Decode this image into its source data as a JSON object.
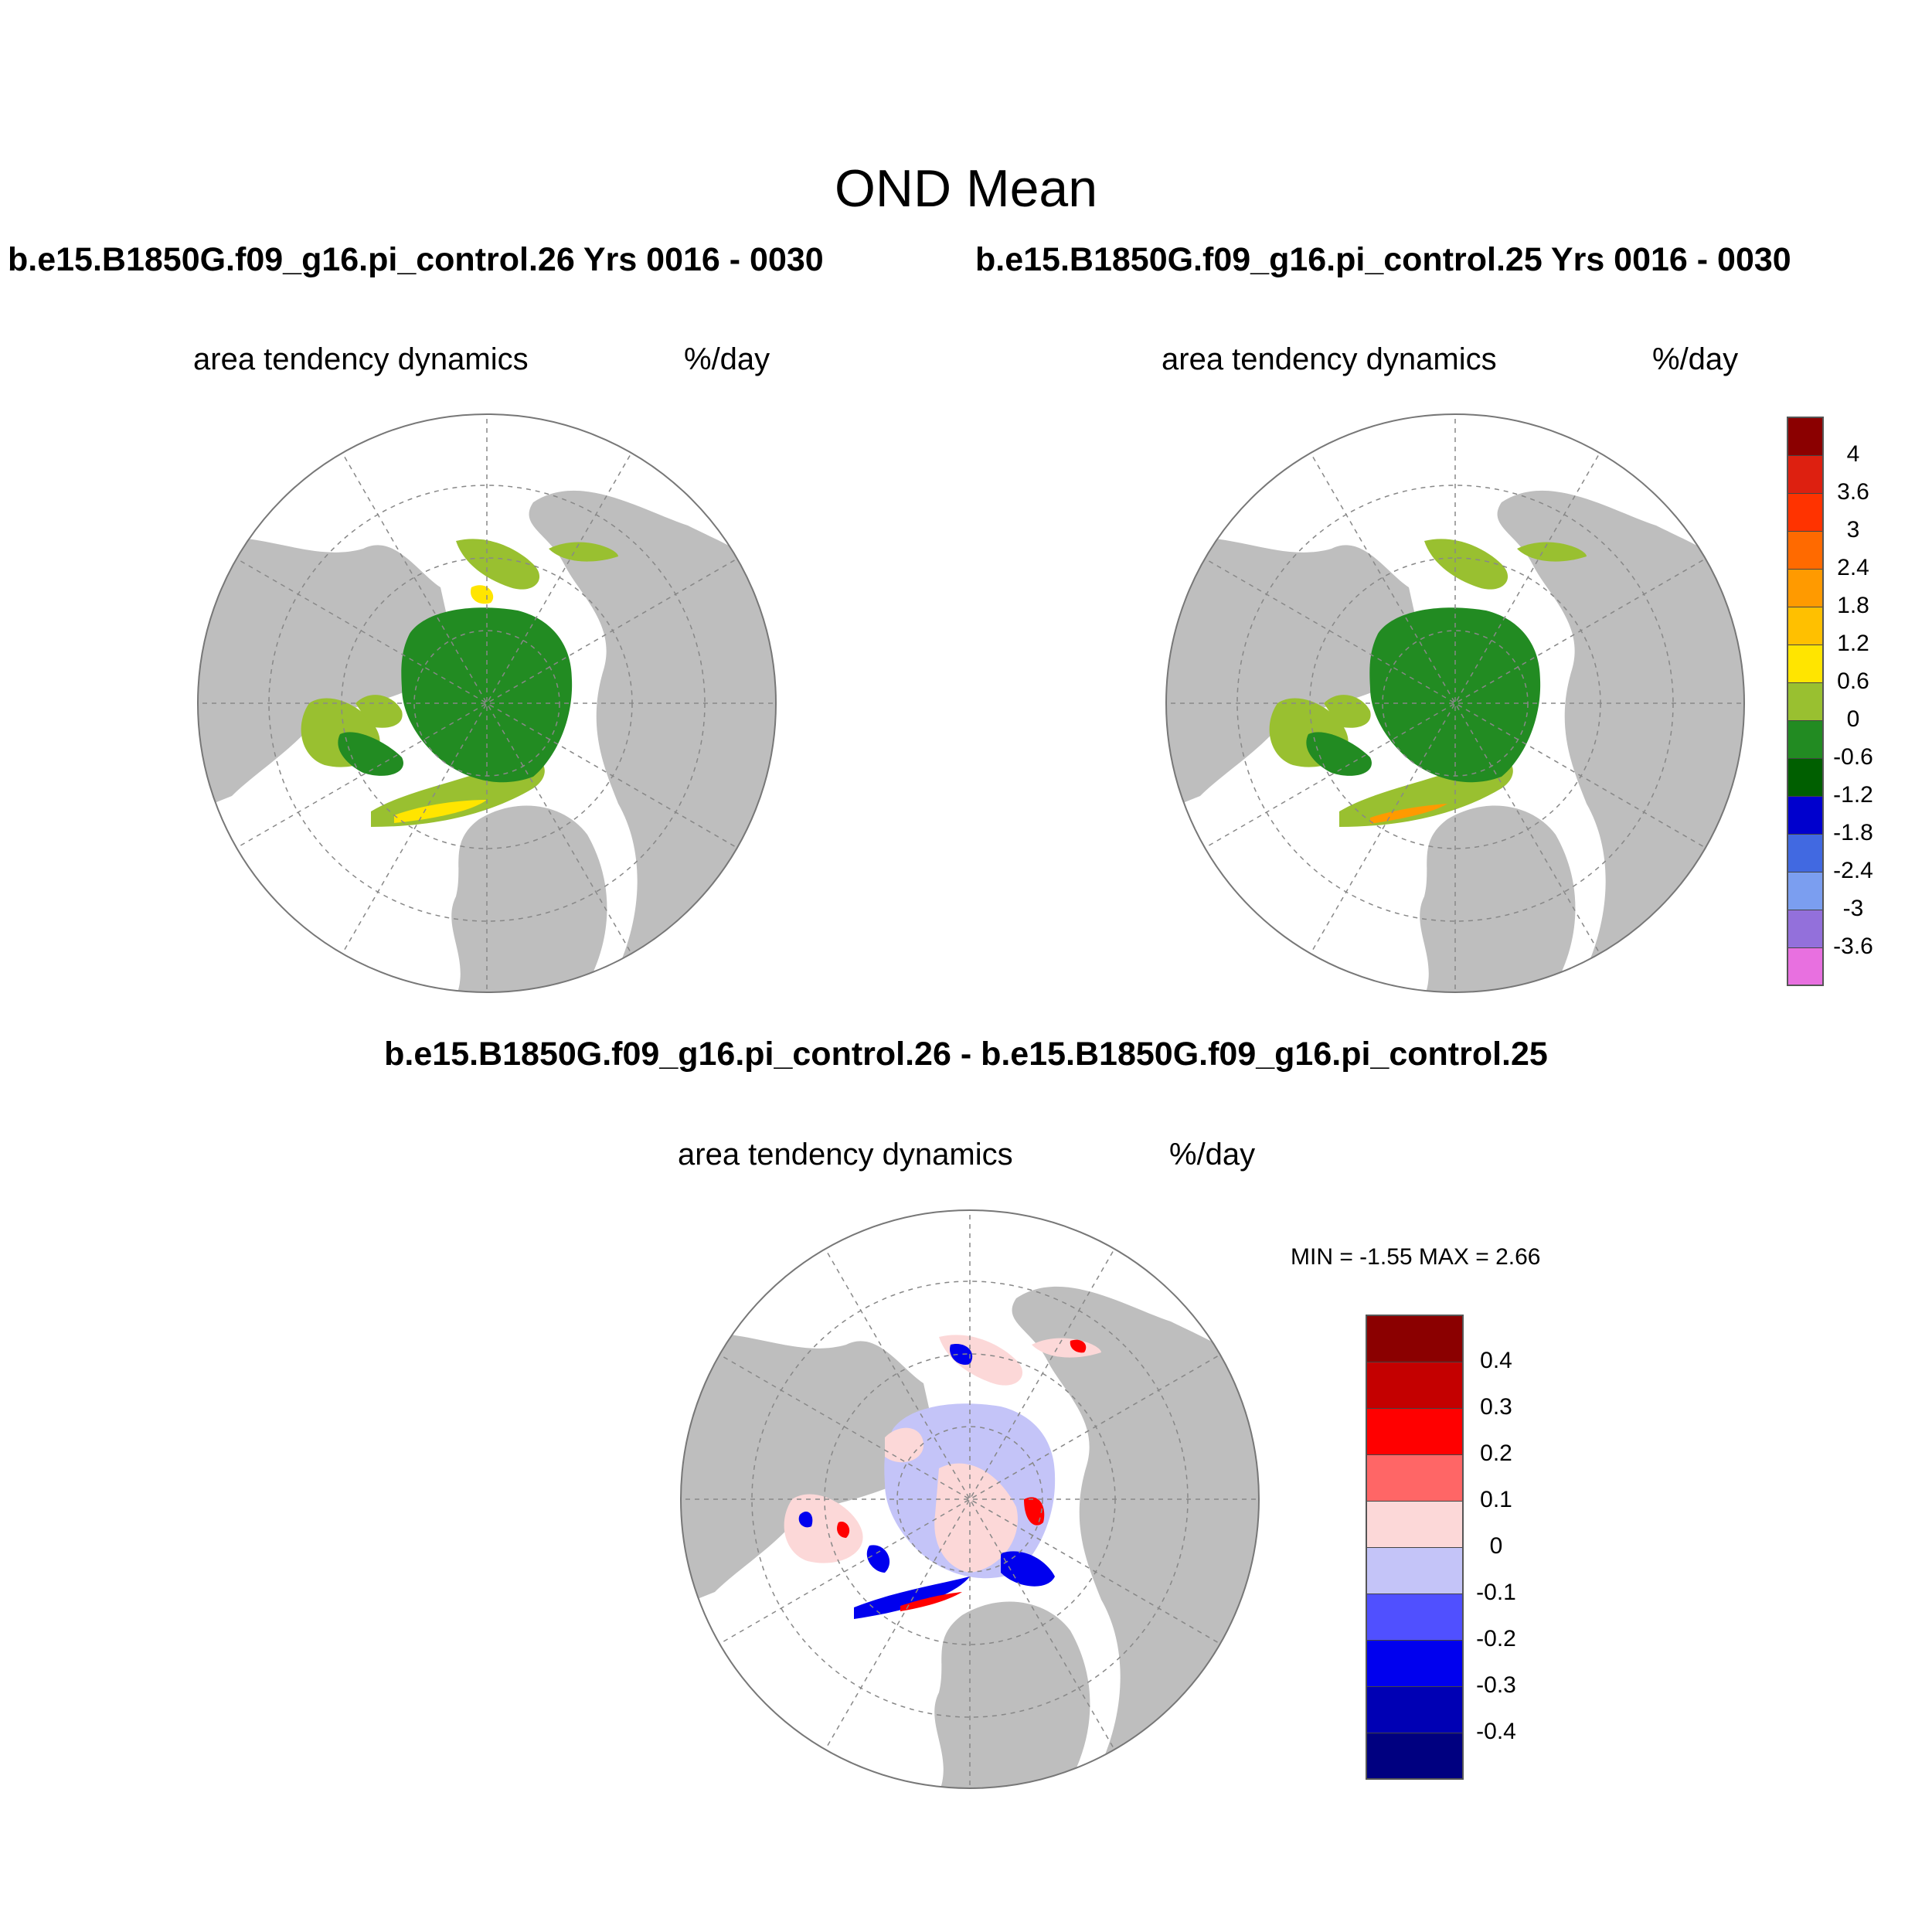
{
  "title": "OND Mean",
  "panels": [
    {
      "case": "b.e15.B1850G.f09_g16.pi_control.26  Yrs 0016 - 0030",
      "variable": "area tendency dynamics",
      "units": "%/day"
    },
    {
      "case": "b.e15.B1850G.f09_g16.pi_control.25  Yrs 0016 - 0030",
      "variable": "area tendency dynamics",
      "units": "%/day"
    }
  ],
  "difference": {
    "title": "b.e15.B1850G.f09_g16.pi_control.26 - b.e15.B1850G.f09_g16.pi_control.25",
    "variable": "area tendency dynamics",
    "units": "%/day",
    "minmax": "MIN =  -1.55 MAX =   2.66"
  },
  "colorbar_main": {
    "labels": [
      "4",
      "3.6",
      "3",
      "2.4",
      "1.8",
      "1.2",
      "0.6",
      "0",
      "-0.6",
      "-1.2",
      "-1.8",
      "-2.4",
      "-3",
      "-3.6"
    ],
    "colors": [
      "#8b0000",
      "#dd2010",
      "#ff3300",
      "#ff6a00",
      "#ff9a00",
      "#ffc000",
      "#ffe500",
      "#99c030",
      "#228b22",
      "#005f00",
      "#0000cd",
      "#4169e1",
      "#7b9ef0",
      "#9370db",
      "#e870e0"
    ]
  },
  "colorbar_diff": {
    "labels": [
      "0.4",
      "0.3",
      "0.2",
      "0.1",
      "0",
      "-0.1",
      "-0.2",
      "-0.3",
      "-0.4"
    ],
    "colors": [
      "#8b0000",
      "#c40000",
      "#ff0000",
      "#ff6666",
      "#fcd8d8",
      "#c4c4f8",
      "#5050ff",
      "#0000ee",
      "#0000b4",
      "#000080"
    ]
  },
  "map_colors": {
    "land": "#bebebe",
    "ocean": "#ffffff",
    "ice_main": "#228b22",
    "ice_edge_green": "#99c030",
    "ice_edge_yellow": "#ffe500",
    "ice_edge_orange": "#ff9a00",
    "diff_pos": "#fcd8d8",
    "diff_neg": "#c4c4f8",
    "diff_strong_pos": "#ff0000",
    "diff_strong_neg": "#0000ee"
  }
}
